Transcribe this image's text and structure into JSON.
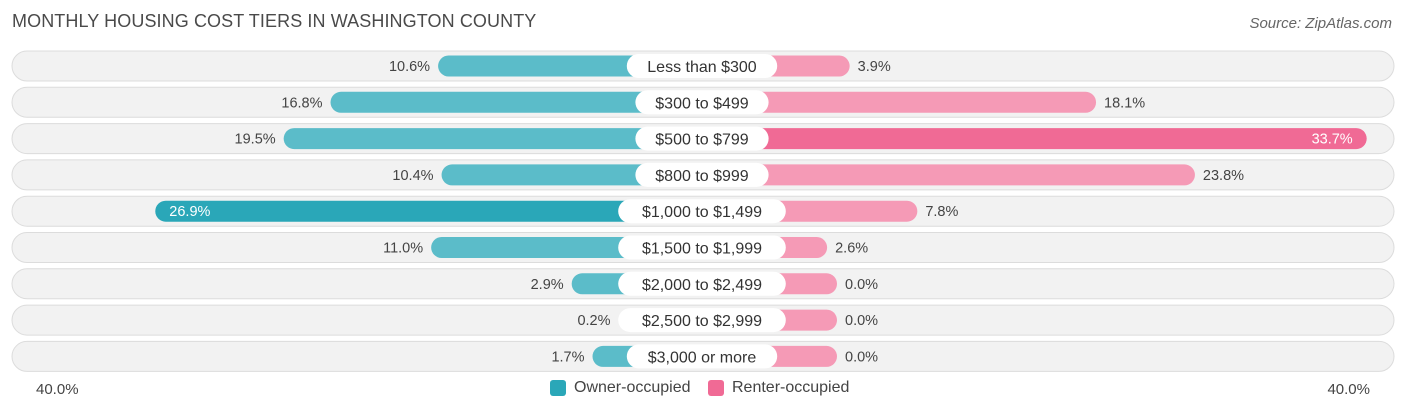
{
  "header": {
    "title": "MONTHLY HOUSING COST TIERS IN WASHINGTON COUNTY",
    "source": "Source: ZipAtlas.com"
  },
  "legend": {
    "owner": "Owner-occupied",
    "renter": "Renter-occupied"
  },
  "axis": {
    "left_label": "40.0%",
    "right_label": "40.0%"
  },
  "colors": {
    "owner": "#5bbcc9",
    "owner_strong": "#2aa7b8",
    "renter": "#f59ab6",
    "renter_strong": "#f06a95",
    "row_bg": "#f2f2f2",
    "row_border": "#dcdcdc"
  },
  "chart_data": {
    "type": "bar",
    "orientation": "horizontal-diverging",
    "title": "MONTHLY HOUSING COST TIERS IN WASHINGTON COUNTY",
    "xlim": [
      -40,
      40
    ],
    "categories": [
      "Less than $300",
      "$300 to $499",
      "$500 to $799",
      "$800 to $999",
      "$1,000 to $1,499",
      "$1,500 to $1,999",
      "$2,000 to $2,499",
      "$2,500 to $2,999",
      "$3,000 or more"
    ],
    "series": [
      {
        "name": "Owner-occupied",
        "values": [
          10.6,
          16.8,
          19.5,
          10.4,
          26.9,
          11.0,
          2.9,
          0.2,
          1.7
        ]
      },
      {
        "name": "Renter-occupied",
        "values": [
          3.9,
          18.1,
          33.7,
          23.8,
          7.8,
          2.6,
          0.0,
          0.0,
          0.0
        ]
      }
    ],
    "labels_owner": [
      "10.6%",
      "16.8%",
      "19.5%",
      "10.4%",
      "26.9%",
      "11.0%",
      "2.9%",
      "0.2%",
      "1.7%"
    ],
    "labels_renter": [
      "3.9%",
      "18.1%",
      "33.7%",
      "23.8%",
      "7.8%",
      "2.6%",
      "0.0%",
      "0.0%",
      "0.0%"
    ]
  }
}
